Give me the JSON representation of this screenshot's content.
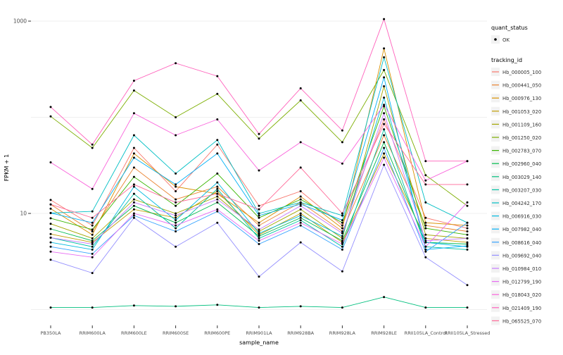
{
  "figure": {
    "background": "#FFFFFF",
    "panel_background": "#FFFFFF",
    "grid_color": "#EFEFEF",
    "tick_color": "#333333",
    "tick_label_color": "#4D4D4D",
    "axis_title_color": "#000000",
    "legend_key_fill": "#F2F2F2",
    "point_color": "#000000"
  },
  "chart_data": {
    "type": "line",
    "title": "",
    "xlabel": "sample_name",
    "ylabel": "FPKM + 1",
    "y_scale": "log10",
    "ylim": [
      1,
      1100
    ],
    "y_ticks": [
      {
        "value": 10,
        "label": "10"
      },
      {
        "value": 1000,
        "label": "1000"
      }
    ],
    "grid_values": [
      1,
      10,
      100,
      1000
    ],
    "categories": [
      "PB350LA",
      "RRIM600LA",
      "RRIM600LE",
      "RRIM600SE",
      "RRIM600PE",
      "RRIM901LA",
      "RRIM928BA",
      "RRIM928LA",
      "RRIM928LE",
      "RRII105LA_Control",
      "RRII105LA_Stressed"
    ],
    "legend": {
      "position": "right",
      "quant_status_title": "quant_status",
      "quant_status_items": [
        {
          "label": "OK",
          "symbol": "point"
        }
      ],
      "tracking_id_title": "tracking_id"
    },
    "series": [
      {
        "name": "Hb_000005_100",
        "color": "#F8766D",
        "values": [
          13.8,
          7.5,
          48,
          17,
          52,
          12,
          17,
          7.5,
          95,
          9,
          7
        ]
      },
      {
        "name": "Hb_000441_050",
        "color": "#EA8331",
        "values": [
          12.4,
          6.5,
          30,
          14,
          19,
          7.5,
          13,
          6.5,
          65,
          7.5,
          6.5
        ]
      },
      {
        "name": "Hb_000976_130",
        "color": "#D89000",
        "values": [
          11.2,
          6,
          42,
          19,
          16,
          8,
          15,
          7,
          520,
          8,
          7.5
        ]
      },
      {
        "name": "Hb_001053_020",
        "color": "#C09B00",
        "values": [
          6.1,
          5,
          11,
          9,
          17,
          6,
          10,
          5,
          42,
          5.5,
          5
        ]
      },
      {
        "name": "Hb_001109_160",
        "color": "#A3A500",
        "values": [
          7.8,
          5.5,
          14,
          10,
          15,
          6.5,
          11,
          5.5,
          210,
          6,
          5.5
        ]
      },
      {
        "name": "Hb_001250_020",
        "color": "#7CAE00",
        "values": [
          102,
          48,
          190,
          100,
          175,
          60,
          150,
          55,
          310,
          25,
          12
        ]
      },
      {
        "name": "Hb_002783_070",
        "color": "#39B600",
        "values": [
          8.9,
          6.8,
          24,
          12,
          26,
          9,
          14,
          8,
          130,
          7,
          6
        ]
      },
      {
        "name": "Hb_002960_040",
        "color": "#00BB4E",
        "values": [
          6.9,
          5.2,
          12,
          8,
          13,
          5.8,
          9,
          5.2,
          55,
          5,
          4.8
        ]
      },
      {
        "name": "Hb_003029_140",
        "color": "#00BF7D",
        "values": [
          1.05,
          1.05,
          1.1,
          1.08,
          1.12,
          1.05,
          1.08,
          1.05,
          1.35,
          1.05,
          1.05
        ]
      },
      {
        "name": "Hb_003207_030",
        "color": "#00C1A3",
        "values": [
          5.6,
          4.5,
          16,
          7,
          18,
          5.5,
          8.5,
          4.5,
          75,
          4.5,
          4.2
        ]
      },
      {
        "name": "Hb_004242_170",
        "color": "#00BFC4",
        "values": [
          10.1,
          10.5,
          65,
          26,
          58,
          10,
          13,
          9.5,
          420,
          13,
          8
        ]
      },
      {
        "name": "Hb_006916_030",
        "color": "#00BAE0",
        "values": [
          5.0,
          4.2,
          19,
          8.5,
          21,
          6.2,
          9.5,
          5.8,
          160,
          5,
          4.5
        ]
      },
      {
        "name": "Hb_007982_040",
        "color": "#00B0F6",
        "values": [
          10.1,
          8,
          38,
          20,
          42,
          9.5,
          12.5,
          8.5,
          260,
          4.2,
          4.6
        ]
      },
      {
        "name": "Hb_008616_040",
        "color": "#35A2FF",
        "values": [
          4.5,
          3.8,
          9.5,
          6.5,
          10.5,
          4.8,
          7.5,
          4.2,
          48,
          4,
          8
        ]
      },
      {
        "name": "Hb_009692_040",
        "color": "#9590FF",
        "values": [
          3.3,
          2.4,
          9,
          4.5,
          8,
          2.2,
          5,
          2.5,
          32,
          3.5,
          1.8
        ]
      },
      {
        "name": "Hb_010984_010",
        "color": "#C77CFF",
        "values": [
          5.6,
          4.8,
          13,
          9.5,
          14,
          6.8,
          12,
          6.2,
          110,
          5.2,
          5.5
        ]
      },
      {
        "name": "Hb_012799_190",
        "color": "#E76BF3",
        "values": [
          4.0,
          3.5,
          10,
          7.5,
          11,
          5.2,
          8,
          4.8,
          38,
          4.5,
          13
        ]
      },
      {
        "name": "Hb_018043_020",
        "color": "#FA62DB",
        "values": [
          34,
          18,
          110,
          65,
          95,
          28,
          55,
          33,
          135,
          22,
          35
        ]
      },
      {
        "name": "Hb_021409_190",
        "color": "#FF62BC",
        "values": [
          128,
          52,
          240,
          365,
          268,
          67,
          200,
          73,
          1050,
          35,
          35
        ]
      },
      {
        "name": "Hb_065525_070",
        "color": "#FF6A98",
        "values": [
          12.4,
          9,
          20,
          13,
          16,
          11,
          30,
          10,
          85,
          20,
          20
        ]
      }
    ]
  }
}
